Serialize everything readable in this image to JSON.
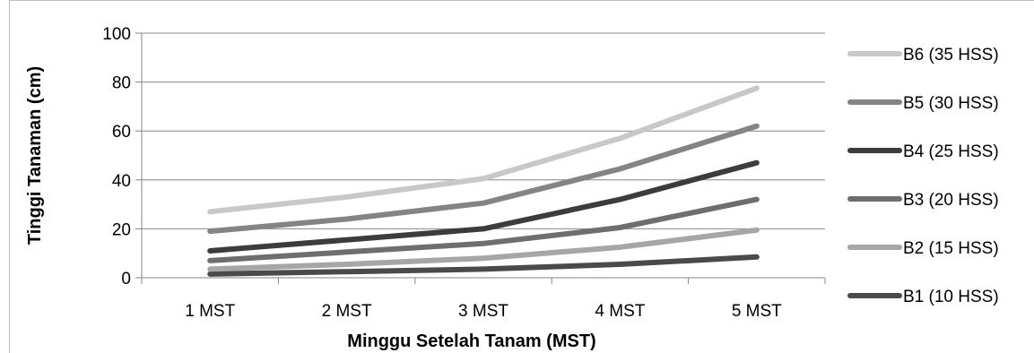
{
  "chart_data": {
    "type": "line",
    "categories": [
      "1 MST",
      "2 MST",
      "3 MST",
      "4 MST",
      "5 MST"
    ],
    "xlabel": "Minggu Setelah Tanam (MST)",
    "ylabel": "Tinggi Tanaman (cm)",
    "ylim": [
      0,
      100
    ],
    "yticks": [
      0,
      20,
      40,
      60,
      80,
      100
    ],
    "grid": true,
    "legend_position": "right",
    "series": [
      {
        "name": "B6 (35 HSS)",
        "color": "#c8c8c8",
        "values": [
          27,
          33,
          40.5,
          57,
          77.5
        ]
      },
      {
        "name": "B5 (30 HSS)",
        "color": "#848484",
        "values": [
          19,
          24,
          30.5,
          44.5,
          62
        ]
      },
      {
        "name": "B4 (25 HSS)",
        "color": "#3c3c3c",
        "values": [
          11,
          15.5,
          20,
          32,
          47
        ]
      },
      {
        "name": "B3 (20 HSS)",
        "color": "#6e6e6e",
        "values": [
          7,
          10.5,
          14,
          20.5,
          32
        ]
      },
      {
        "name": "B2 (15 HSS)",
        "color": "#a6a6a6",
        "values": [
          3.5,
          5.5,
          8,
          12.5,
          19.5
        ]
      },
      {
        "name": "B1 (10 HSS)",
        "color": "#4a4a4a",
        "values": [
          1.5,
          2.5,
          3.5,
          5.5,
          8.5
        ]
      }
    ]
  }
}
